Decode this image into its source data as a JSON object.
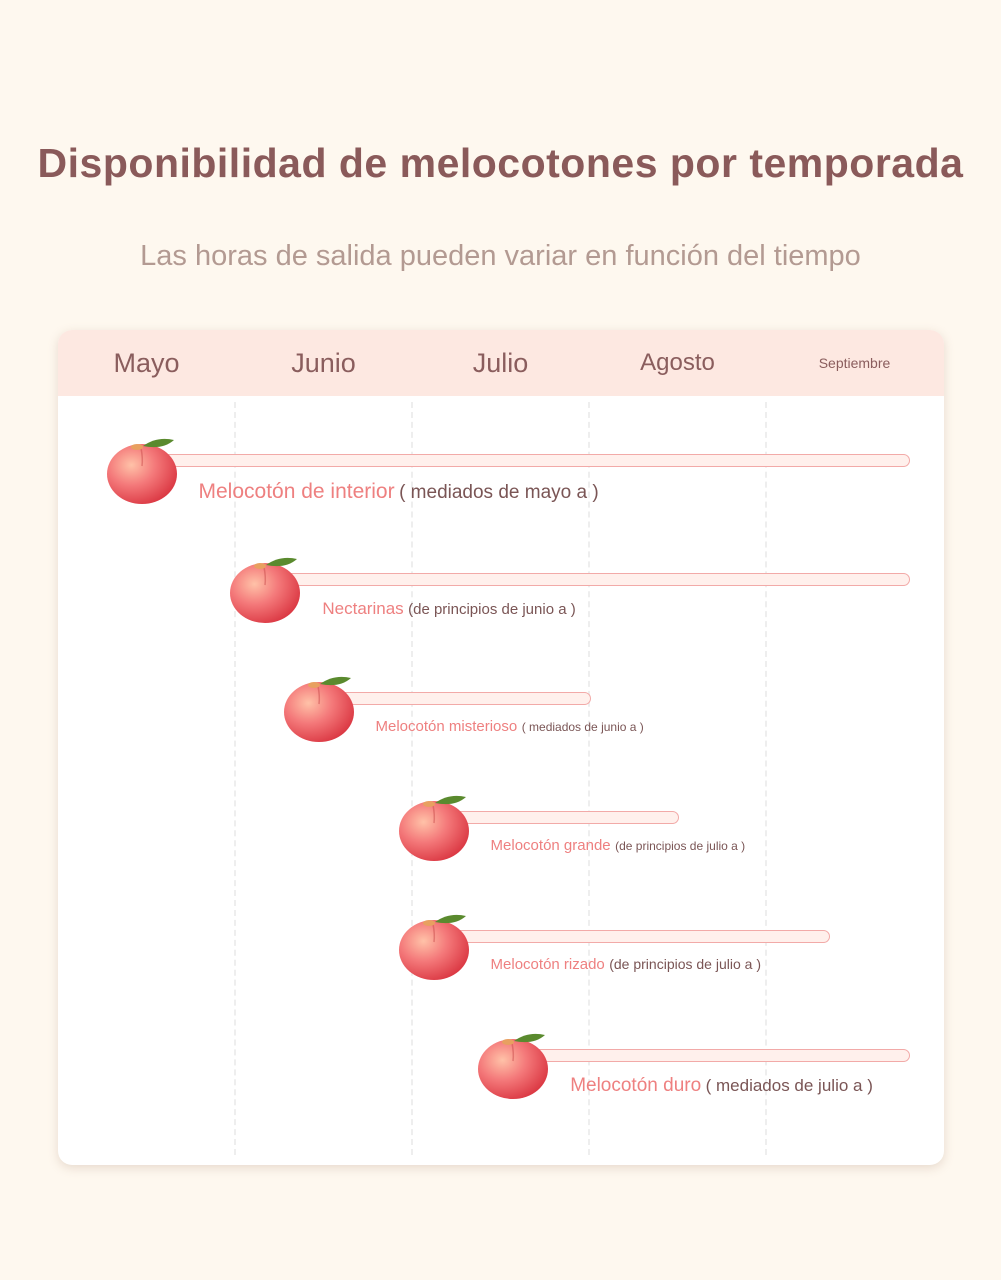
{
  "title": "Disponibilidad de melocotones por temporada",
  "subtitle": "Las horas de salida pueden variar en función del tiempo",
  "colors": {
    "accent": "#ee8080",
    "bar_fill": "#fff0ec",
    "bar_border": "#f2aaa8",
    "header_bg": "#fde8e1",
    "text": "#8a5a5a"
  },
  "chart_data": {
    "type": "gantt",
    "x_unit": "month (5 = start of May)",
    "xlim": [
      5,
      10
    ],
    "grid": true,
    "months": [
      "Mayo",
      "Junio",
      "Julio",
      "Agosto",
      "Septiembre"
    ],
    "items": [
      {
        "name": "Melocotón de interior",
        "range": "( mediados de mayo a )",
        "start": 5.5,
        "end": 9.8,
        "icon": "peach-icon"
      },
      {
        "name": "Nectarinas",
        "range": "(de principios de junio a )",
        "start": 6.2,
        "end": 9.8,
        "icon": "peach-icon"
      },
      {
        "name": "Melocotón misterioso",
        "range": "( mediados de junio a )",
        "start": 6.5,
        "end": 8.0,
        "icon": "peach-icon"
      },
      {
        "name": "Melocotón grande",
        "range": "(de principios de julio a )",
        "start": 7.15,
        "end": 8.5,
        "icon": "peach-icon"
      },
      {
        "name": "Melocotón rizado",
        "range": "(de principios de julio a )",
        "start": 7.15,
        "end": 9.35,
        "icon": "peach-icon"
      },
      {
        "name": "Melocotón duro",
        "range": "( mediados de julio a )",
        "start": 7.6,
        "end": 9.8,
        "icon": "peach-icon"
      }
    ]
  }
}
